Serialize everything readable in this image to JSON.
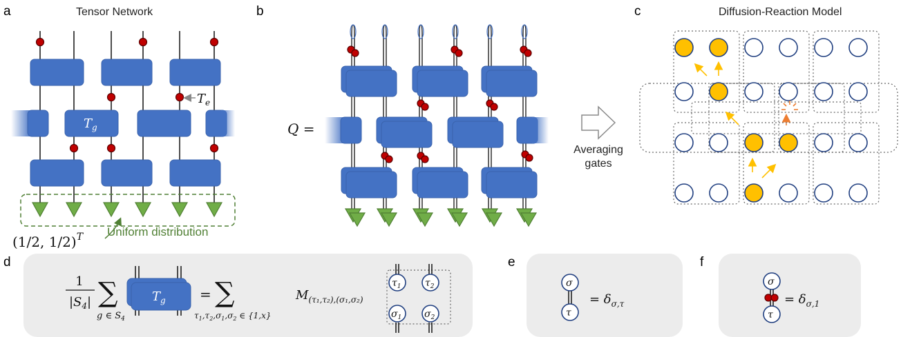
{
  "panels": {
    "a": {
      "letter": "a",
      "title": "Tensor Network",
      "gate_label": "T_g",
      "edge_label": "T_e",
      "vector_label": "(1/2, 1/2)^T",
      "note": "Uniform distribution"
    },
    "b": {
      "letter": "b",
      "lhs": "Q ="
    },
    "arrow": {
      "line1": "Averaging",
      "line2": "gates"
    },
    "c": {
      "letter": "c",
      "title": "Diffusion-Reaction Model"
    },
    "d": {
      "letter": "d",
      "frac_num": "1",
      "frac_den": "|S_4|",
      "sum_sub": "g ∈ S_4",
      "gate_label": "T_g",
      "rhs_sum_sub": "τ1,τ2,σ1,σ2 ∈ {1,x}",
      "matrix": "M_(τ1,τ2),(σ1,σ2)",
      "node_labels": [
        "τ1",
        "τ2",
        "σ1",
        "σ2"
      ]
    },
    "e": {
      "letter": "e",
      "top": "σ",
      "bottom": "τ",
      "result": "= δ_σ,τ"
    },
    "f": {
      "letter": "f",
      "top": "σ",
      "bottom": "τ",
      "result": "= δ_σ,1"
    }
  },
  "colors": {
    "gate": "#4472c4",
    "particle": "#ffc000",
    "edge_dot": "#c00000",
    "boundary": "#70ad47",
    "site_border": "#203f80"
  }
}
